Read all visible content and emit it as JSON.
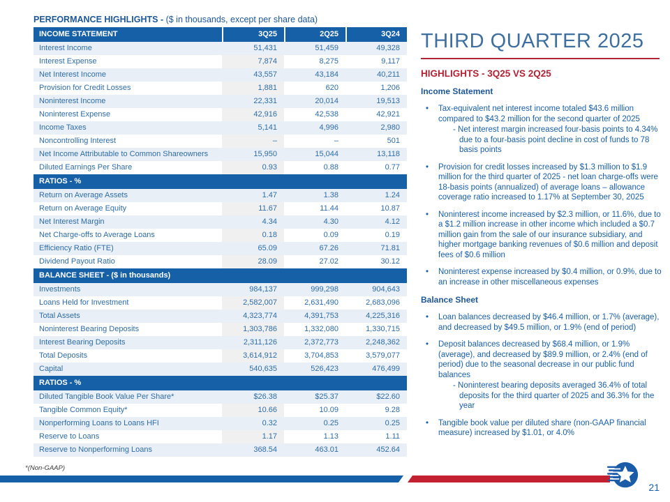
{
  "page": {
    "title_bold": "PERFORMANCE HIGHLIGHTS -",
    "title_rest": " ($ in thousands, except per share data)",
    "footnote": "*(Non-GAAP)",
    "page_number": "21",
    "bullet_char": "•"
  },
  "colors": {
    "band-blue": "#1660A8",
    "light-row": "#E9EFF6",
    "cur-tint": "#F0F0F1",
    "table-text": "#2E6CA8",
    "dark-title": "#1E5799",
    "light-title": "#3E6F9E",
    "red": "#B22335",
    "bar-blue": "#1560A8",
    "bar-red": "#C32032",
    "bullet-text": "#1A5FA9",
    "logo-blue": "#1B5CA8"
  },
  "table": {
    "columns": [
      "3Q25",
      "2Q25",
      "3Q24"
    ],
    "sections": [
      {
        "header": "INCOME STATEMENT",
        "rows": [
          {
            "label": "Interest Income",
            "values": [
              "51,431",
              "51,459",
              "49,328"
            ]
          },
          {
            "label": "Interest Expense",
            "values": [
              "7,874",
              "8,275",
              "9,117"
            ]
          },
          {
            "label": "Net Interest Income",
            "values": [
              "43,557",
              "43,184",
              "40,211"
            ]
          },
          {
            "label": "Provision for Credit Losses",
            "values": [
              "1,881",
              "620",
              "1,206"
            ]
          },
          {
            "label": "Noninterest Income",
            "values": [
              "22,331",
              "20,014",
              "19,513"
            ]
          },
          {
            "label": "Noninterest Expense",
            "values": [
              "42,916",
              "42,538",
              "42,921"
            ]
          },
          {
            "label": "Income Taxes",
            "values": [
              "5,141",
              "4,996",
              "2,980"
            ]
          },
          {
            "label": "Noncontrolling Interest",
            "values": [
              "–",
              "–",
              "501"
            ]
          },
          {
            "label": "Net Income Attributable to Common Shareowners",
            "values": [
              "15,950",
              "15,044",
              "13,118"
            ]
          },
          {
            "label": "Diluted Earnings Per Share",
            "values": [
              "0.93",
              "0.88",
              "0.77"
            ]
          }
        ]
      },
      {
        "header": "RATIOS - %",
        "rows": [
          {
            "label": "Return on Average Assets",
            "values": [
              "1.47",
              "1.38",
              "1.24"
            ]
          },
          {
            "label": "Return on Average Equity",
            "values": [
              "11.67",
              "11.44",
              "10.87"
            ]
          },
          {
            "label": "Net Interest Margin",
            "values": [
              "4.34",
              "4.30",
              "4.12"
            ]
          },
          {
            "label": "Net Charge-offs to Average Loans",
            "values": [
              "0.18",
              "0.09",
              "0.19"
            ]
          },
          {
            "label": "Efficiency Ratio (FTE)",
            "values": [
              "65.09",
              "67.26",
              "71.81"
            ]
          },
          {
            "label": "Dividend Payout Ratio",
            "values": [
              "28.09",
              "27.02",
              "30.12"
            ]
          }
        ]
      },
      {
        "header": "BALANCE SHEET - ($ in thousands)",
        "rows": [
          {
            "label": "Investments",
            "values": [
              "984,137",
              "999,298",
              "904,643"
            ]
          },
          {
            "label": "Loans Held for Investment",
            "values": [
              "2,582,007",
              "2,631,490",
              "2,683,096"
            ]
          },
          {
            "label": "Total Assets",
            "values": [
              "4,323,774",
              "4,391,753",
              "4,225,316"
            ]
          },
          {
            "label": "Noninterest Bearing Deposits",
            "values": [
              "1,303,786",
              "1,332,080",
              "1,330,715"
            ]
          },
          {
            "label": "Interest Bearing Deposits",
            "values": [
              "2,311,126",
              "2,372,773",
              "2,248,362"
            ]
          },
          {
            "label": "Total Deposits",
            "values": [
              "3,614,912",
              "3,704,853",
              "3,579,077"
            ]
          },
          {
            "label": "Capital",
            "values": [
              "540,635",
              "526,423",
              "476,499"
            ]
          }
        ]
      },
      {
        "header": "RATIOS - %",
        "rows": [
          {
            "label": "Diluted Tangible Book Value Per Share*",
            "values": [
              "$26.38",
              "$25.37",
              "$22.60"
            ]
          },
          {
            "label": "Tangible Common Equity*",
            "values": [
              "10.66",
              "10.09",
              "9.28"
            ]
          },
          {
            "label": "Nonperforming Loans to Loans HFI",
            "values": [
              "0.32",
              "0.25",
              "0.25"
            ]
          },
          {
            "label": "Reserve to Loans",
            "values": [
              "1.17",
              "1.13",
              "1.11"
            ]
          },
          {
            "label": "Reserve to Nonperforming Loans",
            "values": [
              "368.54",
              "463.01",
              "452.64"
            ]
          }
        ]
      }
    ]
  },
  "highlights": {
    "title": "THIRD QUARTER 2025",
    "subtitle": "HIGHLIGHTS - 3Q25 VS 2Q25",
    "groups": [
      {
        "heading": "Income Statement",
        "bullets": [
          {
            "text": "Tax-equivalent net interest income totaled $43.6 million compared to $43.2 million for the second quarter of 2025",
            "subs": [
              "- Net interest margin increased four-basis points to 4.34% due to a four-basis point decline in cost of funds to 78 basis points"
            ]
          },
          {
            "text": "Provision for credit losses increased by $1.3 million to $1.9 million for the third quarter of 2025 - net loan charge-offs were 18-basis points (annualized) of average loans – allowance coverage ratio increased to 1.17% at September 30, 2025",
            "subs": []
          },
          {
            "text": "Noninterest income increased by $2.3 million, or 11.6%, due to a $1.2 million increase in other income which included a $0.7 million gain from the sale of our insurance subsidiary, and higher mortgage banking revenues of $0.6 million and deposit fees of $0.6 million",
            "subs": []
          },
          {
            "text": "Noninterest expense increased by $0.4 million, or 0.9%, due to an increase in other miscellaneous expenses",
            "subs": []
          }
        ]
      },
      {
        "heading": "Balance Sheet",
        "bullets": [
          {
            "text": "Loan balances decreased by $46.4 million, or 1.7% (average), and decreased by $49.5 million, or 1.9% (end of period)",
            "subs": []
          },
          {
            "text": "Deposit balances decreased by $68.4 million, or 1.9% (average), and decreased by $89.9 million, or 2.4% (end of period) due to the seasonal decrease in our public fund balances",
            "subs": [
              "- Noninterest bearing deposits averaged 36.4% of total deposits for the third quarter of 2025 and 36.3% for the year"
            ]
          },
          {
            "text": "Tangible book value per diluted share (non-GAAP financial measure) increased by $1.01, or 4.0%",
            "subs": []
          }
        ]
      }
    ]
  }
}
